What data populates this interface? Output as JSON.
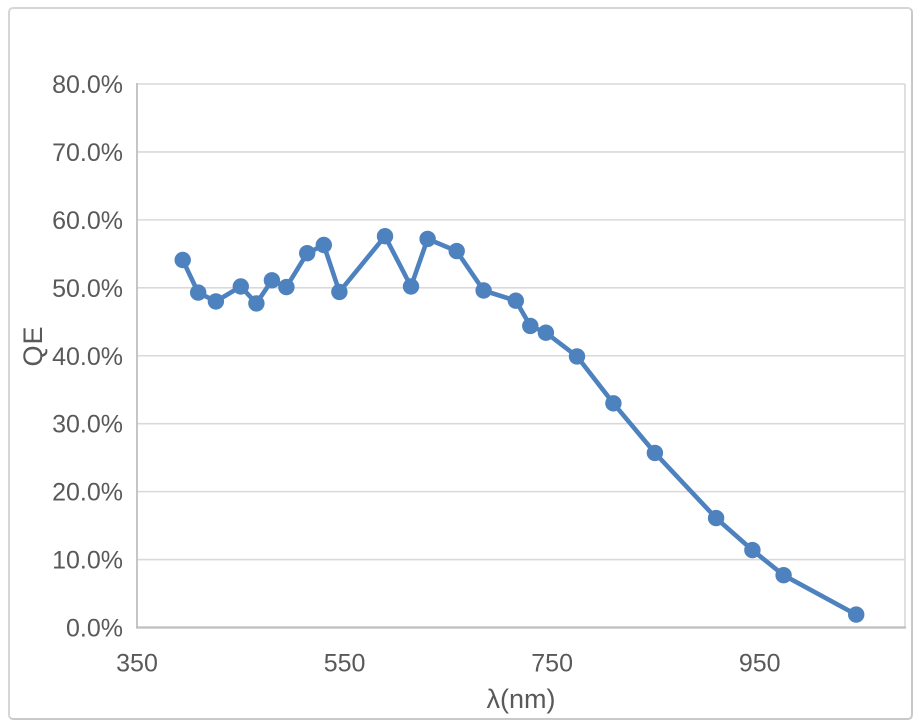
{
  "chart_data": {
    "type": "line",
    "title": "",
    "xlabel": "λ(nm)",
    "ylabel": "QE",
    "series": [
      {
        "name": "QE",
        "marker": "circle",
        "points": [
          {
            "lambda_nm": 394,
            "qe_percent": 54.1
          },
          {
            "lambda_nm": 409,
            "qe_percent": 49.3
          },
          {
            "lambda_nm": 426,
            "qe_percent": 48.0
          },
          {
            "lambda_nm": 450,
            "qe_percent": 50.2
          },
          {
            "lambda_nm": 465,
            "qe_percent": 47.7
          },
          {
            "lambda_nm": 480,
            "qe_percent": 51.1
          },
          {
            "lambda_nm": 494,
            "qe_percent": 50.1
          },
          {
            "lambda_nm": 514,
            "qe_percent": 55.1
          },
          {
            "lambda_nm": 530,
            "qe_percent": 56.3
          },
          {
            "lambda_nm": 545,
            "qe_percent": 49.4
          },
          {
            "lambda_nm": 589,
            "qe_percent": 57.6
          },
          {
            "lambda_nm": 614,
            "qe_percent": 50.2
          },
          {
            "lambda_nm": 630,
            "qe_percent": 57.2
          },
          {
            "lambda_nm": 658,
            "qe_percent": 55.4
          },
          {
            "lambda_nm": 684,
            "qe_percent": 49.6
          },
          {
            "lambda_nm": 715,
            "qe_percent": 48.1
          },
          {
            "lambda_nm": 729,
            "qe_percent": 44.4
          },
          {
            "lambda_nm": 744,
            "qe_percent": 43.4
          },
          {
            "lambda_nm": 774,
            "qe_percent": 39.9
          },
          {
            "lambda_nm": 809,
            "qe_percent": 33.0
          },
          {
            "lambda_nm": 849,
            "qe_percent": 25.7
          },
          {
            "lambda_nm": 908,
            "qe_percent": 16.1
          },
          {
            "lambda_nm": 943,
            "qe_percent": 11.4
          },
          {
            "lambda_nm": 973,
            "qe_percent": 7.7
          },
          {
            "lambda_nm": 1043,
            "qe_percent": 1.9
          }
        ]
      }
    ],
    "xlim": [
      350,
      1090
    ],
    "ylim_percent": [
      0,
      80
    ],
    "x_ticks": [
      {
        "value": 350,
        "label": "350"
      },
      {
        "value": 550,
        "label": "550"
      },
      {
        "value": 750,
        "label": "750"
      },
      {
        "value": 950,
        "label": "950"
      }
    ],
    "y_ticks": [
      {
        "value": 0,
        "label": "0.0%"
      },
      {
        "value": 10,
        "label": "10.0%"
      },
      {
        "value": 20,
        "label": "20.0%"
      },
      {
        "value": 30,
        "label": "30.0%"
      },
      {
        "value": 40,
        "label": "40.0%"
      },
      {
        "value": 50,
        "label": "50.0%"
      },
      {
        "value": 60,
        "label": "60.0%"
      },
      {
        "value": 70,
        "label": "70.0%"
      },
      {
        "value": 80,
        "label": "80.0%"
      }
    ],
    "grid": "horizontal-major",
    "legend": "none",
    "colors": {
      "series": "#4d82bf",
      "gridline": "#d9d9d9",
      "axis_line": "#bfbfbf",
      "plot_border": "#d9d9d9",
      "tick_label": "#595959",
      "chart_border": "#d6d6d6",
      "background": "#ffffff"
    }
  }
}
